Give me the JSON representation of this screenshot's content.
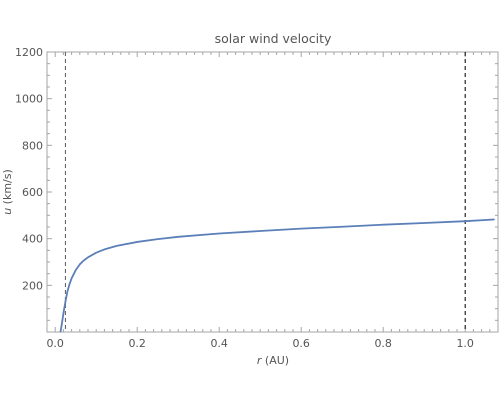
{
  "chart_data": {
    "type": "line",
    "title": "solar wind velocity",
    "xlabel_var": "r",
    "xlabel_unit": " (AU)",
    "ylabel_var": "u",
    "ylabel_unit": " (km/s)",
    "xlim": [
      -0.02,
      1.08
    ],
    "ylim": [
      0,
      1200
    ],
    "xticks": [
      0.0,
      0.2,
      0.4,
      0.6,
      0.8,
      1.0
    ],
    "xtick_labels": [
      "0.0",
      "0.2",
      "0.4",
      "0.6",
      "0.8",
      "1.0"
    ],
    "yticks": [
      200,
      400,
      600,
      800,
      1000,
      1200
    ],
    "ytick_labels": [
      "200",
      "400",
      "600",
      "800",
      "1000",
      "1200"
    ],
    "grid": false,
    "series": [
      {
        "color": "#5b7fb8",
        "x": [
          0.013,
          0.015,
          0.018,
          0.02,
          0.023,
          0.026,
          0.03,
          0.035,
          0.04,
          0.05,
          0.06,
          0.07,
          0.08,
          0.1,
          0.12,
          0.15,
          0.2,
          0.25,
          0.3,
          0.4,
          0.5,
          0.6,
          0.7,
          0.8,
          0.9,
          1.0,
          1.07
        ],
        "y": [
          2,
          22,
          55,
          80,
          110,
          140,
          175,
          205,
          230,
          265,
          290,
          307,
          320,
          340,
          354,
          369,
          386,
          398,
          408,
          422,
          433,
          443,
          451,
          460,
          467,
          475,
          482
        ]
      }
    ],
    "vlines": [
      {
        "x": 0.025,
        "color": "#666666",
        "style": "dashed"
      },
      {
        "x": 1.0,
        "color": "#111111",
        "style": "dashed"
      }
    ]
  }
}
